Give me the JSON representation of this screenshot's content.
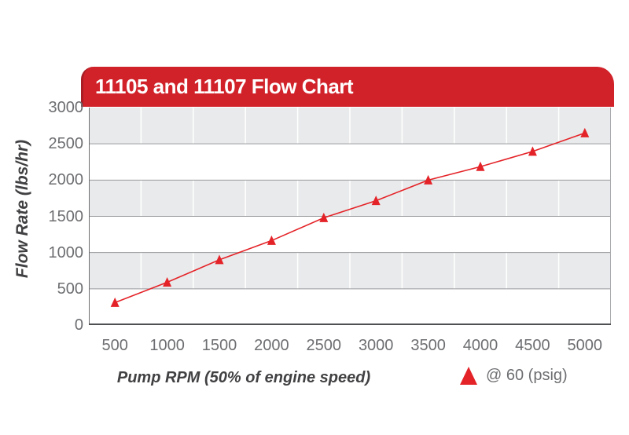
{
  "chart_data": {
    "type": "line",
    "title": "11105 and 11107 Flow Chart",
    "xlabel": "Pump RPM (50% of engine speed)",
    "ylabel": "Flow Rate (lbs/hr)",
    "xlim": [
      250,
      5250
    ],
    "ylim": [
      0,
      3000
    ],
    "xticks": [
      500,
      1000,
      1500,
      2000,
      2500,
      3000,
      3500,
      4000,
      4500,
      5000
    ],
    "yticks": [
      0,
      500,
      1000,
      1500,
      2000,
      2500,
      3000
    ],
    "grid": {
      "band_step": 500,
      "horizontal_lines": true,
      "vertical_lines_white_on_bands": true
    },
    "series": [
      {
        "name": "@ 60 (psig)",
        "marker": "triangle",
        "x": [
          500,
          1000,
          1500,
          2000,
          2500,
          3000,
          3500,
          4000,
          4500,
          5000
        ],
        "values": [
          310,
          590,
          900,
          1165,
          1480,
          1715,
          2000,
          2185,
          2395,
          2650
        ]
      }
    ],
    "legend": {
      "label": "@ 60 (psig)",
      "position": "bottom-right"
    }
  },
  "colors": {
    "banner_red": "#d1222a",
    "banner_edge": "#a81e24",
    "band_gray": "#e9eaeb",
    "band_white": "#ffffff",
    "grid_gray": "#97999c",
    "axis_bottom": "#4f5052",
    "axis_left": "#6d6e71",
    "axis_right": "#a7a9ac",
    "tick_text": "#6d6e71",
    "label_text": "#414042",
    "series_red": "#e42328"
  }
}
